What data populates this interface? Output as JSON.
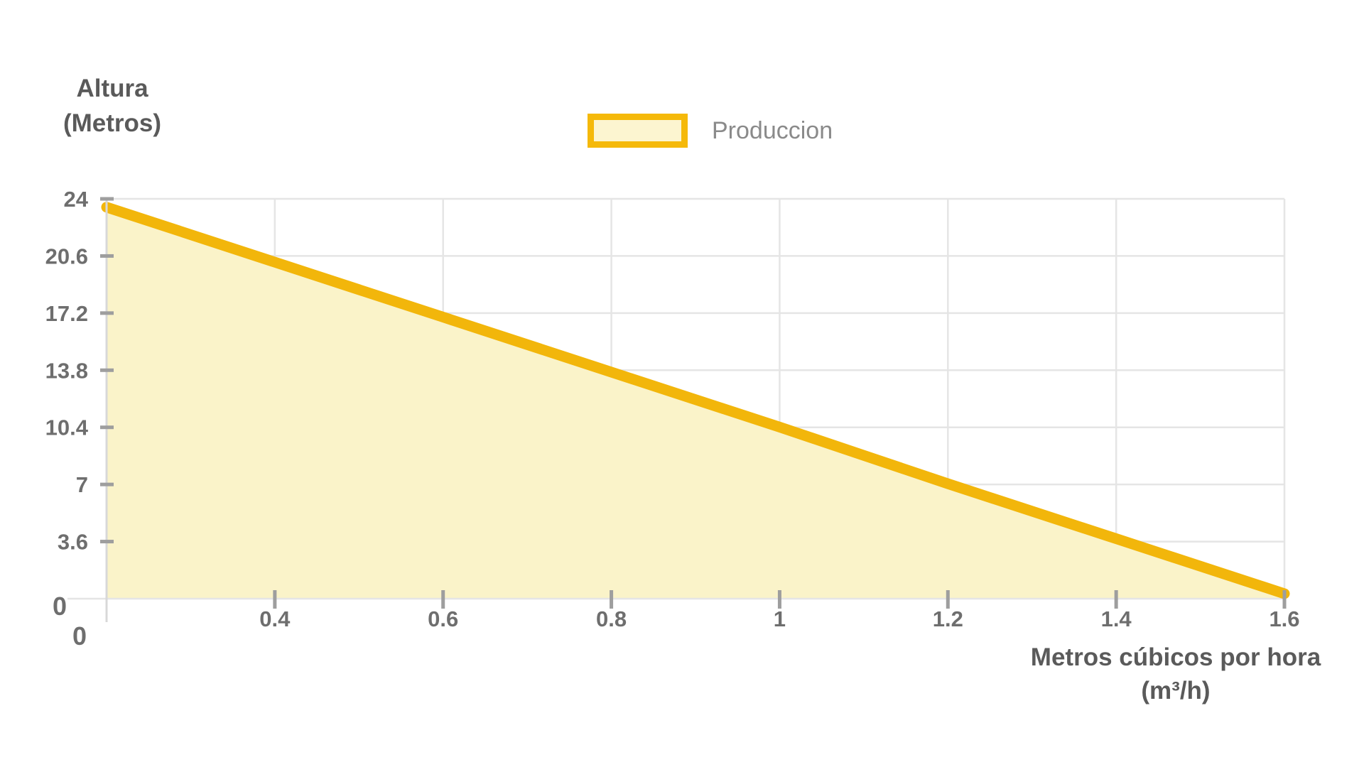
{
  "chart_data": {
    "type": "area",
    "title": "",
    "x": [
      0,
      0.4,
      0.6,
      0.8,
      1,
      1.2,
      1.4,
      1.6
    ],
    "series": [
      {
        "name": "Produccion",
        "values": [
          23.5,
          20.2,
          16.9,
          13.6,
          10.3,
          6.9,
          3.6,
          0.3
        ]
      }
    ],
    "x_tick_labels": [
      "0",
      "0.4",
      "0.6",
      "0.8",
      "1",
      "1.2",
      "1.4",
      "1.6"
    ],
    "y_tick_labels": [
      "0",
      "3.6",
      "7",
      "10.4",
      "13.8",
      "17.2",
      "20.6",
      "24"
    ],
    "ylim": [
      0,
      24
    ],
    "xlabel": {
      "line1": "Metros cúbicos por hora",
      "line2": "(m³/h)"
    },
    "ylabel": {
      "line1": "Altura",
      "line2": "(Metros)"
    },
    "legend": {
      "label": "Produccion",
      "position": "top-center"
    },
    "grid": true,
    "layout_hints": {
      "x_ticks_evenly_spaced": true,
      "area_fill_opaque_over_grid": true
    },
    "colors": {
      "line": "#F2B60B",
      "area_fill": "#FAF3C9",
      "legend_border": "#F5B90A",
      "legend_fill": "#FCF5D0",
      "grid": "#E5E5E5",
      "axis": "#D8D8D8",
      "tick_mark": "#9E9E9E",
      "tick_text": "#6E6E6E",
      "title_text": "#5A5A5A",
      "legend_text": "#8A8A8A"
    }
  }
}
